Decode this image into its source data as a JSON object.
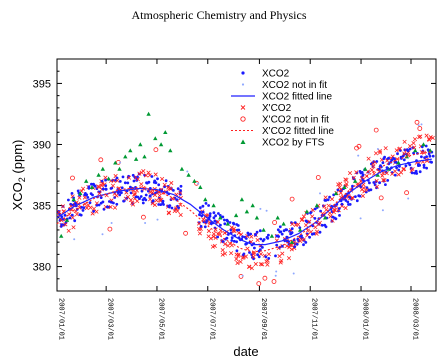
{
  "page": {
    "header": "Atmospheric Chemistry and Physics"
  },
  "chart_data": {
    "type": "scatter",
    "xlabel": "date",
    "ylabel_main": "XCO",
    "ylabel_sub": "2",
    "ylabel_unit": " (ppm)",
    "ylim": [
      378,
      397
    ],
    "yticks": [
      380,
      385,
      390,
      395
    ],
    "xticks": [
      "2007/01/01",
      "2007/03/01",
      "2007/05/01",
      "2007/07/01",
      "2007/09/01",
      "2007/11/01",
      "2008/01/01",
      "2008/03/01"
    ],
    "xtick_days": [
      0,
      59,
      120,
      181,
      243,
      304,
      365,
      425
    ],
    "xlim_days": [
      0,
      455
    ],
    "grid": false,
    "legend_position": "top-right",
    "colors": {
      "xco2": "#1a1aff",
      "xco2_not_in_fit": "#8fa8ff",
      "xco2_fit": "#2222ff",
      "xpco2": "#ff2020",
      "xpco2_not_in_fit": "#ff2020",
      "xpco2_fit": "#ff2020",
      "fts": "#009933"
    },
    "series": [
      {
        "name": "XCO2",
        "marker": "dot"
      },
      {
        "name": "XCO2 not in fit",
        "marker": "small-dot"
      },
      {
        "name": "XCO2 fitted line",
        "marker": "line"
      },
      {
        "name": "X'CO2",
        "marker": "cross"
      },
      {
        "name": "X'CO2 not in fit",
        "marker": "circle"
      },
      {
        "name": "X'CO2 fitted line",
        "marker": "dashed"
      },
      {
        "name": "XCO2 by FTS",
        "marker": "triangle"
      }
    ],
    "fit_xco2": {
      "x": [
        0,
        20,
        45,
        75,
        100,
        120,
        140,
        160,
        180,
        200,
        220,
        235,
        250,
        270,
        290,
        310,
        330,
        350,
        370,
        390,
        410,
        430,
        450
      ],
      "y": [
        384.0,
        384.9,
        385.7,
        386.2,
        386.4,
        386.3,
        385.9,
        385.1,
        384.0,
        383.0,
        382.2,
        381.8,
        381.8,
        382.1,
        382.7,
        383.6,
        384.8,
        386.0,
        387.0,
        387.8,
        388.3,
        388.6,
        388.8
      ]
    },
    "fit_xpco2": {
      "x": [
        0,
        20,
        45,
        75,
        100,
        120,
        140,
        160,
        180,
        200,
        220,
        235,
        250,
        270,
        290,
        310,
        330,
        350,
        370,
        390,
        410,
        430,
        450
      ],
      "y": [
        383.5,
        384.6,
        385.6,
        386.3,
        386.5,
        386.2,
        385.6,
        384.6,
        383.4,
        382.3,
        381.5,
        381.2,
        381.3,
        381.7,
        382.5,
        383.6,
        384.9,
        386.2,
        387.3,
        388.2,
        388.8,
        389.2,
        389.4
      ]
    },
    "fts_points": {
      "x": [
        5,
        12,
        20,
        28,
        35,
        42,
        50,
        55,
        62,
        70,
        75,
        82,
        88,
        95,
        100,
        105,
        110,
        118,
        125,
        130,
        136,
        150,
        158,
        165,
        172,
        178,
        188,
        196,
        205,
        215,
        222,
        228,
        235,
        240,
        248,
        258,
        265,
        272,
        282,
        292,
        300,
        312,
        322,
        335,
        345,
        358,
        370,
        385,
        398,
        410,
        420,
        430,
        440,
        448
      ],
      "y": [
        382.5,
        383.8,
        385.5,
        386.0,
        387.0,
        386.5,
        387.5,
        388.0,
        387.2,
        388.5,
        388.0,
        389.0,
        389.5,
        388.8,
        390.0,
        389.0,
        392.5,
        390.5,
        390.0,
        391.0,
        389.5,
        388.0,
        387.5,
        387.0,
        386.5,
        385.5,
        385.0,
        384.0,
        383.5,
        384.2,
        385.5,
        384.5,
        385.0,
        384.0,
        383.0,
        382.5,
        384.0,
        383.5,
        382.0,
        383.0,
        384.5,
        385.0,
        384.0,
        386.0,
        386.5,
        387.0,
        388.0,
        387.5,
        388.0,
        388.5,
        389.0,
        389.5,
        390.0,
        389.5
      ]
    }
  }
}
